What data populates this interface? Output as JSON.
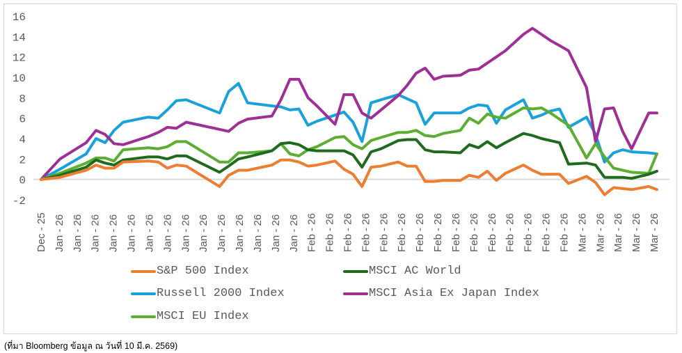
{
  "source_note": "(ที่มา Bloomberg ข้อมูล ณ วันที่ 10 มี.ค. 2569)",
  "chart_data": {
    "type": "line",
    "title": "",
    "xlabel": "",
    "ylabel": "",
    "ylim": [
      -2,
      16
    ],
    "yticks": [
      "-2",
      "0",
      "2",
      "4",
      "6",
      "8",
      "10",
      "12",
      "14",
      "16"
    ],
    "grid": false,
    "legend_position": "bottom",
    "tick_labels": [
      "Dec-25",
      "Jan-26",
      "Jan-26",
      "Jan-26",
      "Jan-26",
      "Jan-26",
      "Jan-26",
      "Jan-26",
      "Jan-26",
      "Jan-26",
      "Jan-26",
      "Jan-26",
      "Jan-26",
      "Jan-26",
      "Jan-26",
      "Feb-26",
      "Feb-26",
      "Feb-26",
      "Feb-26",
      "Feb-26",
      "Feb-26",
      "Feb-26",
      "Feb-26",
      "Feb-26",
      "Feb-26",
      "Feb-26",
      "Feb-26",
      "Feb-26",
      "Feb-26",
      "Feb-26",
      "Mar-26",
      "Mar-26",
      "Mar-26",
      "Mar-26",
      "Mar-26"
    ],
    "x": [
      0,
      2.1,
      5,
      6.1,
      7.1,
      8.1,
      9.1,
      11.9,
      13,
      14,
      15,
      16.1,
      19.8,
      20.8,
      21.9,
      22.9,
      25.6,
      26.6,
      27.6,
      28.6,
      29.6,
      30.6,
      32.6,
      33.6,
      34.6,
      35.6,
      36.6,
      37.7,
      39.6,
      40.6,
      41.6,
      42.6,
      43.6,
      44.6,
      46.5,
      47.5,
      48.5,
      49.5,
      50.5,
      51.5,
      53.5,
      54.5,
      55.5,
      56.5,
      57.5,
      58.5,
      60.5,
      61.5,
      62.5,
      63.5,
      64.5,
      65.5,
      67.4,
      68.3
    ],
    "series": [
      {
        "name": "S&P 500 Index",
        "color": "#ED7D31",
        "values": [
          0,
          0.2,
          0.9,
          1.4,
          1.1,
          1.1,
          1.7,
          1.8,
          1.7,
          1.1,
          1.4,
          1.3,
          -0.7,
          0.4,
          0.9,
          0.9,
          1.4,
          1.9,
          1.9,
          1.7,
          1.3,
          1.4,
          1.8,
          1.0,
          0.5,
          -0.7,
          1.2,
          1.3,
          1.7,
          1.3,
          1.3,
          -0.2,
          -0.2,
          -0.1,
          -0.1,
          0.4,
          0.2,
          0.8,
          -0.1,
          0.6,
          1.4,
          0.9,
          0.5,
          0.5,
          0.5,
          -0.4,
          0.3,
          -0.3,
          -1.5,
          -0.8,
          -0.9,
          -1.0,
          -0.7,
          -1.0
        ]
      },
      {
        "name": "MSCI AC World",
        "color": "#1E6B1E",
        "values": [
          0,
          0.4,
          1.2,
          1.9,
          1.6,
          1.4,
          1.9,
          2.2,
          2.2,
          2.0,
          2.3,
          2.3,
          0.7,
          1.3,
          2.0,
          2.2,
          2.8,
          3.5,
          3.6,
          3.4,
          2.9,
          2.8,
          2.8,
          2.8,
          2.4,
          1.2,
          2.7,
          3.0,
          3.8,
          3.9,
          3.9,
          2.9,
          2.7,
          2.7,
          2.6,
          3.4,
          3.1,
          3.7,
          3.1,
          3.6,
          4.5,
          4.3,
          4.0,
          3.8,
          3.6,
          1.5,
          1.6,
          1.4,
          0.2,
          0.2,
          0.2,
          0.1,
          0.5,
          0.8
        ]
      },
      {
        "name": "Russell 2000 Index",
        "color": "#1AA1DB",
        "values": [
          0,
          1.0,
          2.5,
          4.0,
          3.6,
          4.8,
          5.6,
          6.1,
          6.0,
          6.8,
          7.7,
          7.8,
          6.5,
          8.6,
          9.4,
          7.5,
          7.2,
          7.1,
          6.8,
          6.9,
          5.3,
          5.7,
          6.3,
          6.6,
          5.6,
          3.7,
          7.5,
          7.8,
          8.3,
          7.9,
          7.5,
          5.4,
          6.5,
          6.5,
          6.5,
          7.0,
          7.3,
          7.2,
          5.5,
          6.8,
          7.8,
          6.0,
          6.3,
          6.7,
          6.9,
          5.1,
          6.1,
          4.4,
          1.7,
          2.6,
          2.9,
          2.7,
          2.6,
          2.5
        ]
      },
      {
        "name": "MSCI Asia Ex Japan Index",
        "color": "#9E2F96",
        "values": [
          0,
          2.0,
          3.6,
          4.8,
          4.4,
          3.5,
          3.4,
          4.2,
          4.6,
          5.1,
          5.0,
          5.6,
          4.9,
          4.7,
          5.5,
          5.9,
          6.2,
          7.8,
          9.8,
          9.8,
          8.0,
          7.2,
          5.4,
          8.3,
          8.3,
          6.5,
          6.0,
          6.8,
          8.2,
          9.2,
          10.4,
          10.9,
          9.8,
          10.1,
          10.2,
          10.7,
          10.8,
          11.4,
          12.0,
          12.6,
          14.2,
          14.8,
          14.2,
          13.6,
          13.1,
          12.6,
          9.0,
          3.7,
          6.9,
          7.0,
          4.7,
          3.0,
          6.5,
          6.5
        ]
      },
      {
        "name": "MSCI EU Index",
        "color": "#5BAE32",
        "values": [
          0,
          0.6,
          1.6,
          2.1,
          2.1,
          1.8,
          2.9,
          3.1,
          3.0,
          3.2,
          3.7,
          3.7,
          1.7,
          1.7,
          2.6,
          2.6,
          2.8,
          3.5,
          2.5,
          2.3,
          2.9,
          3.2,
          4.1,
          4.2,
          3.4,
          3.0,
          3.8,
          4.1,
          4.6,
          4.6,
          4.8,
          4.3,
          4.2,
          4.5,
          4.8,
          6.0,
          5.5,
          6.4,
          6.1,
          6.0,
          7.0,
          6.9,
          7.0,
          6.5,
          5.9,
          5.3,
          2.1,
          3.5,
          2.2,
          1.1,
          0.9,
          0.7,
          0.6,
          2.5
        ]
      }
    ]
  }
}
